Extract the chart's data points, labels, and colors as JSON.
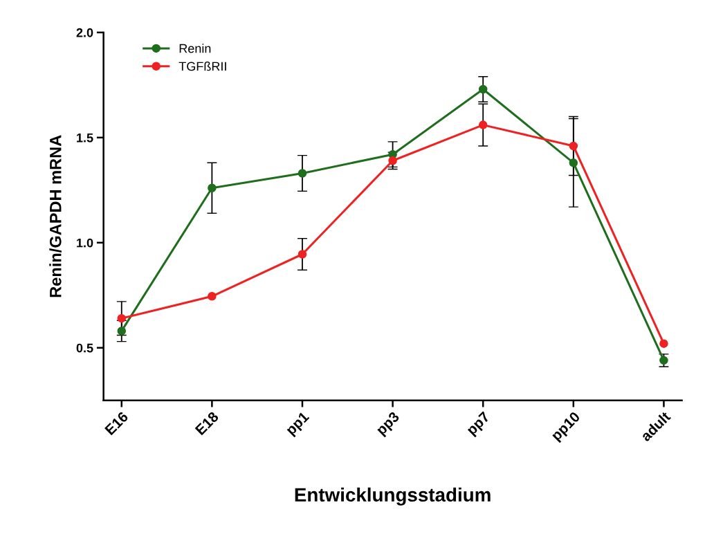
{
  "chart_data": {
    "type": "line",
    "xlabel": "Entwicklungsstadium",
    "ylabel": "Renin/GAPDH mRNA",
    "categories": [
      "E16",
      "E18",
      "pp1",
      "pp3",
      "pp7",
      "pp10",
      "adult"
    ],
    "series": [
      {
        "name": "Renin",
        "color": "#1e6e1e",
        "values": [
          0.58,
          1.26,
          1.33,
          1.42,
          1.73,
          1.38,
          0.44
        ],
        "errors": [
          0.05,
          0.12,
          0.085,
          0.06,
          0.06,
          0.21,
          0.03
        ]
      },
      {
        "name": "TGFßRII",
        "color": "#ee2222",
        "values": [
          0.64,
          0.745,
          0.945,
          1.39,
          1.56,
          1.46,
          0.52
        ],
        "errors": [
          0.08,
          null,
          0.075,
          0.04,
          0.1,
          0.14,
          null
        ]
      }
    ],
    "ylim": [
      0.25,
      2.0
    ],
    "yticks": [
      {
        "value": 0.5,
        "label": "0.5"
      },
      {
        "value": 1.0,
        "label": "1.0"
      },
      {
        "value": 1.5,
        "label": "1.5"
      },
      {
        "value": 2.0,
        "label": "2.0"
      }
    ],
    "marker": "circle",
    "legend": "top left",
    "grid": false
  }
}
